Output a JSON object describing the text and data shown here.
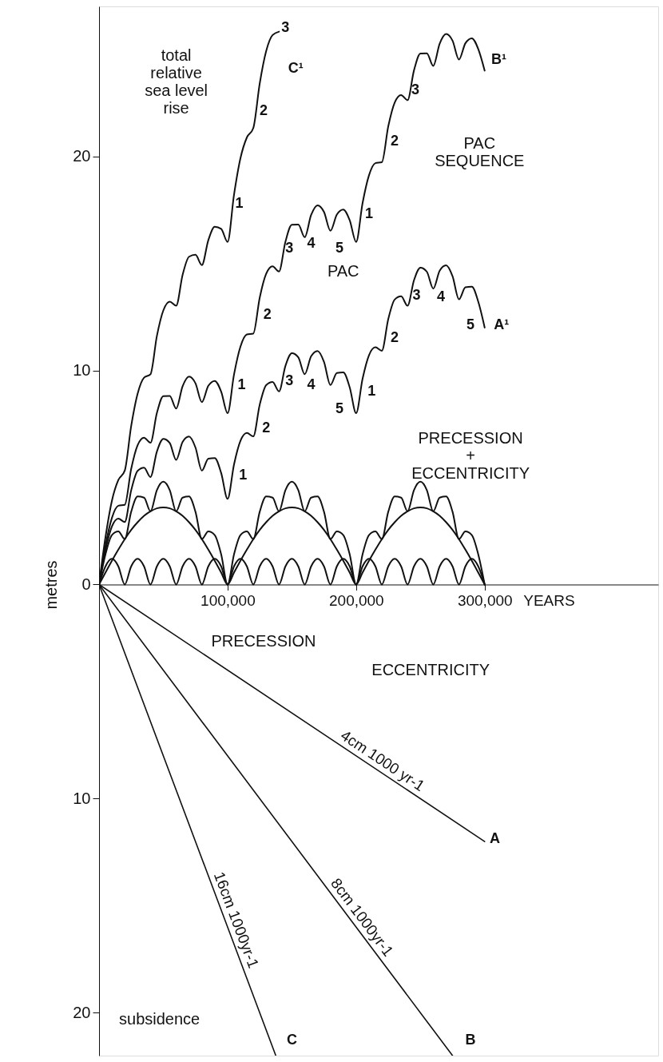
{
  "chart_data": {
    "type": "line",
    "ylabel": "metres",
    "xlabel": "YEARS",
    "x": [
      0,
      5000,
      10000,
      15000,
      20000,
      25000,
      30000,
      35000,
      40000,
      45000,
      50000,
      55000,
      60000,
      65000,
      70000,
      75000,
      80000,
      85000,
      90000,
      95000,
      100000,
      105000,
      110000,
      115000,
      120000,
      125000,
      130000,
      135000,
      140000,
      145000,
      150000,
      155000,
      160000,
      165000,
      170000,
      175000,
      180000,
      185000,
      190000,
      195000,
      200000,
      205000,
      210000,
      215000,
      220000,
      225000,
      230000,
      235000,
      240000,
      245000,
      250000,
      255000,
      260000,
      265000,
      270000,
      275000,
      280000,
      285000,
      290000,
      295000,
      300000
    ],
    "series": [
      {
        "color": "#111111",
        "values": [
          0,
          0.85,
          1.2,
          0.85,
          0,
          0.85,
          1.2,
          0.85,
          0,
          0.85,
          1.2,
          0.85,
          0,
          0.85,
          1.2,
          0.85,
          0,
          0.85,
          1.2,
          0.85,
          0,
          0.85,
          1.2,
          0.85,
          0,
          0.85,
          1.2,
          0.85,
          0,
          0.85,
          1.2,
          0.85,
          0,
          0.85,
          1.2,
          0.85,
          0,
          0.85,
          1.2,
          0.85,
          0,
          0.85,
          1.2,
          0.85,
          0,
          0.85,
          1.2,
          0.85,
          0,
          0.85,
          1.2,
          0.85,
          0,
          0.85,
          1.2,
          0.85,
          0,
          0.85,
          1.2,
          0.85,
          0
        ]
      },
      {
        "color": "#111111",
        "values": [
          0,
          0.56,
          1.11,
          1.63,
          2.12,
          2.55,
          2.91,
          3.21,
          3.42,
          3.56,
          3.6,
          3.56,
          3.42,
          3.21,
          2.91,
          2.55,
          2.12,
          1.63,
          1.11,
          0.56,
          0,
          0.56,
          1.11,
          1.63,
          2.12,
          2.55,
          2.91,
          3.21,
          3.42,
          3.56,
          3.6,
          3.56,
          3.42,
          3.21,
          2.91,
          2.55,
          2.12,
          1.63,
          1.11,
          0.56,
          0,
          0.56,
          1.11,
          1.63,
          2.12,
          2.55,
          2.91,
          3.21,
          3.42,
          3.56,
          3.6,
          3.56,
          3.42,
          3.21,
          2.91,
          2.55,
          2.12,
          1.63,
          1.11,
          0.56,
          0
        ]
      },
      {
        "color": "#111111",
        "values": [
          0,
          1.41,
          2.31,
          2.48,
          2.12,
          3.4,
          4.11,
          4.06,
          3.42,
          4.41,
          4.8,
          4.41,
          3.42,
          4.06,
          4.11,
          3.4,
          2.12,
          2.48,
          2.31,
          1.41,
          0,
          1.41,
          2.31,
          2.48,
          2.12,
          3.4,
          4.11,
          4.06,
          3.42,
          4.41,
          4.8,
          4.41,
          3.42,
          4.06,
          4.11,
          3.4,
          2.12,
          2.48,
          2.31,
          1.41,
          0,
          1.41,
          2.31,
          2.48,
          2.12,
          3.4,
          4.11,
          4.06,
          3.42,
          4.41,
          4.8,
          4.41,
          3.42,
          4.06,
          4.11,
          3.4,
          2.12,
          2.48,
          2.31,
          1.41,
          0
        ]
      },
      {
        "color": "#111111",
        "values": [
          0,
          1.61,
          2.71,
          3.08,
          2.92,
          4.4,
          5.31,
          5.46,
          5.02,
          6.21,
          6.8,
          6.61,
          5.82,
          6.66,
          6.91,
          6.4,
          5.32,
          5.88,
          5.91,
          5.21,
          4.0,
          5.61,
          6.71,
          7.08,
          6.92,
          8.4,
          9.31,
          9.46,
          9.02,
          10.21,
          10.8,
          10.61,
          9.82,
          10.66,
          10.91,
          10.4,
          9.32,
          9.88,
          9.91,
          9.21,
          8.0,
          9.61,
          10.71,
          11.08,
          10.92,
          12.4,
          13.31,
          13.46,
          13.02,
          14.21,
          14.8,
          14.61,
          13.82,
          14.66,
          14.91,
          14.4,
          13.32,
          13.88,
          13.91,
          13.21,
          12.0
        ]
      },
      {
        "color": "#111111",
        "values": [
          0,
          1.81,
          3.11,
          3.68,
          3.72,
          5.4,
          6.51,
          6.86,
          6.62,
          8.01,
          8.8,
          8.81,
          8.22,
          9.26,
          9.71,
          9.4,
          8.52,
          9.28,
          9.51,
          9.01,
          8.0,
          9.81,
          11.11,
          11.68,
          11.72,
          13.4,
          14.51,
          14.86,
          14.62,
          16.01,
          16.8,
          16.81,
          16.22,
          17.26,
          17.71,
          17.4,
          16.52,
          17.28,
          17.51,
          17.01,
          16.0,
          17.81,
          19.11,
          19.68,
          19.72,
          21.4,
          22.51,
          22.86,
          22.62,
          24.01,
          24.8,
          24.81,
          24.22,
          25.26,
          25.71,
          25.4,
          24.52,
          25.28,
          25.51,
          25.01,
          24.0
        ]
      },
      {
        "color": "#111111",
        "x": [
          0,
          5000,
          10000,
          15000,
          20000,
          25000,
          30000,
          35000,
          40000,
          45000,
          50000,
          55000,
          60000,
          65000,
          70000,
          75000,
          80000,
          85000,
          90000,
          95000,
          100000,
          105000,
          110000,
          115000,
          120000,
          125000,
          130000,
          135000,
          140000
        ],
        "values": [
          0,
          2.21,
          3.91,
          4.88,
          5.32,
          7.4,
          8.91,
          9.66,
          9.82,
          11.61,
          12.8,
          13.21,
          13.02,
          14.46,
          15.31,
          15.4,
          14.92,
          16.08,
          16.71,
          16.61,
          16.0,
          18.21,
          19.91,
          20.88,
          21.32,
          23.4,
          24.91,
          25.66,
          25.82
        ]
      },
      {
        "name": "4cm 1000 yr-1",
        "color": "#111111",
        "x": [
          0,
          300000
        ],
        "values": [
          0,
          -12
        ]
      },
      {
        "name": "8cm 1000yr-1",
        "color": "#111111",
        "x": [
          0,
          275000
        ],
        "values": [
          0,
          -22
        ]
      },
      {
        "name": "16cm 1000yr-1",
        "color": "#111111",
        "x": [
          0,
          137500
        ],
        "values": [
          0,
          -22
        ]
      }
    ],
    "xlim": [
      0,
      435000
    ],
    "xticks": [
      {
        "value": 100000,
        "label": "100,000"
      },
      {
        "value": 200000,
        "label": "200,000"
      },
      {
        "value": 300000,
        "label": "300,000"
      }
    ],
    "ylim": [
      -22,
      27
    ],
    "yticks": [
      {
        "value": -20,
        "label": "20"
      },
      {
        "value": -10,
        "label": "10"
      },
      0,
      10,
      20
    ],
    "grid": false,
    "marker": "none",
    "line_style": "solid",
    "annotations": [
      "total\nrelative\nsea level\nrise",
      "C¹",
      "3",
      "2",
      "1",
      "1",
      "2",
      "3",
      "4",
      "5",
      "1",
      "2",
      "3",
      "B¹",
      "1",
      "2",
      "3",
      "4",
      "5",
      "1",
      "2",
      "3",
      "4",
      "5",
      "A¹",
      "PAC",
      "PAC\nSEQUENCE",
      "PRECESSION\n+\nECCENTRICITY",
      "PRECESSION",
      "ECCENTRICITY",
      "A",
      "B",
      "C",
      "subsidence"
    ]
  }
}
